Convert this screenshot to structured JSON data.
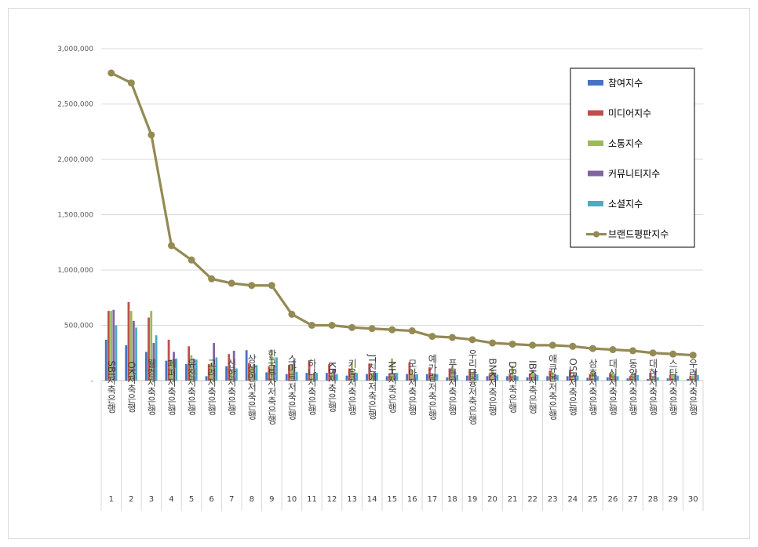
{
  "chart_data": {
    "type": "bar",
    "title": "",
    "xlabel": "",
    "ylabel": "",
    "ylim": [
      0,
      3000000
    ],
    "yticks": [
      "-",
      "500,000",
      "1,000,000",
      "1,500,000",
      "2,000,000",
      "2,500,000",
      "3,000,000"
    ],
    "grid": true,
    "legend_position": "top-right",
    "categories": [
      "SBI저축은행",
      "OK저축은행",
      "웰컴저축은행",
      "페퍼저축은행",
      "유진저축은행",
      "고려저축은행",
      "신한저축은행",
      "상상인저축은행",
      "한국투자저축은행",
      "스마트저축은행",
      "하나저축은행",
      "KB저축은행",
      "키움저축은행",
      "JT친애저축은행",
      "NH저축은행",
      "모아저축은행",
      "예가람저축은행",
      "푸른저축은행",
      "우리금융저축은행",
      "BNK저축은행",
      "DB저축은행",
      "IBK저축은행",
      "애큐온저축은행",
      "OSB저축은행",
      "삼호저축은행",
      "대신저축은행",
      "동양저축은행",
      "대한저축은행",
      "스타저축은행",
      "우리저축은행"
    ],
    "ranks": [
      "1",
      "2",
      "3",
      "4",
      "5",
      "6",
      "7",
      "8",
      "9",
      "10",
      "11",
      "12",
      "13",
      "14",
      "15",
      "16",
      "17",
      "18",
      "19",
      "20",
      "21",
      "22",
      "23",
      "24",
      "25",
      "26",
      "27",
      "28",
      "29",
      "30"
    ],
    "series": [
      {
        "name": "참여지수",
        "type": "bar",
        "color": "#4472c4",
        "values": [
          370000,
          320000,
          260000,
          180000,
          150000,
          40000,
          130000,
          275000,
          75000,
          60000,
          70000,
          70000,
          45000,
          60000,
          40000,
          60000,
          60000,
          30000,
          45000,
          40000,
          40000,
          30000,
          40000,
          40000,
          25000,
          30000,
          20000,
          15000,
          20000,
          15000
        ]
      },
      {
        "name": "미디어지수",
        "type": "bar",
        "color": "#c0504d",
        "values": [
          630000,
          710000,
          570000,
          370000,
          310000,
          150000,
          240000,
          160000,
          130000,
          140000,
          180000,
          150000,
          110000,
          155000,
          60000,
          165000,
          120000,
          110000,
          105000,
          60000,
          60000,
          65000,
          90000,
          95000,
          60000,
          65000,
          40000,
          70000,
          50000,
          45000
        ]
      },
      {
        "name": "소통지수",
        "type": "bar",
        "color": "#9bbb59",
        "values": [
          630000,
          630000,
          630000,
          190000,
          230000,
          160000,
          100000,
          130000,
          280000,
          150000,
          60000,
          70000,
          160000,
          70000,
          200000,
          100000,
          65000,
          130000,
          70000,
          100000,
          135000,
          100000,
          75000,
          50000,
          90000,
          75000,
          70000,
          40000,
          60000,
          45000
        ]
      },
      {
        "name": "커뮤니티지수",
        "type": "bar",
        "color": "#8064a2",
        "values": [
          640000,
          540000,
          340000,
          260000,
          200000,
          340000,
          270000,
          150000,
          140000,
          190000,
          70000,
          100000,
          70000,
          80000,
          60000,
          55000,
          65000,
          90000,
          95000,
          70000,
          50000,
          55000,
          55000,
          55000,
          75000,
          60000,
          70000,
          90000,
          55000,
          90000
        ]
      },
      {
        "name": "소셜지수",
        "type": "bar",
        "color": "#4bacc6",
        "values": [
          500000,
          480000,
          410000,
          200000,
          190000,
          210000,
          110000,
          140000,
          210000,
          80000,
          70000,
          60000,
          70000,
          70000,
          70000,
          60000,
          60000,
          50000,
          60000,
          55000,
          40000,
          50000,
          50000,
          45000,
          40000,
          40000,
          50000,
          30000,
          45000,
          50000
        ]
      },
      {
        "name": "브랜드평판지수",
        "type": "line",
        "color": "#948a54",
        "values": [
          2780000,
          2690000,
          2220000,
          1220000,
          1090000,
          920000,
          880000,
          860000,
          860000,
          600000,
          500000,
          500000,
          480000,
          470000,
          460000,
          450000,
          400000,
          390000,
          370000,
          340000,
          330000,
          320000,
          320000,
          310000,
          290000,
          280000,
          270000,
          250000,
          240000,
          230000
        ]
      }
    ]
  }
}
